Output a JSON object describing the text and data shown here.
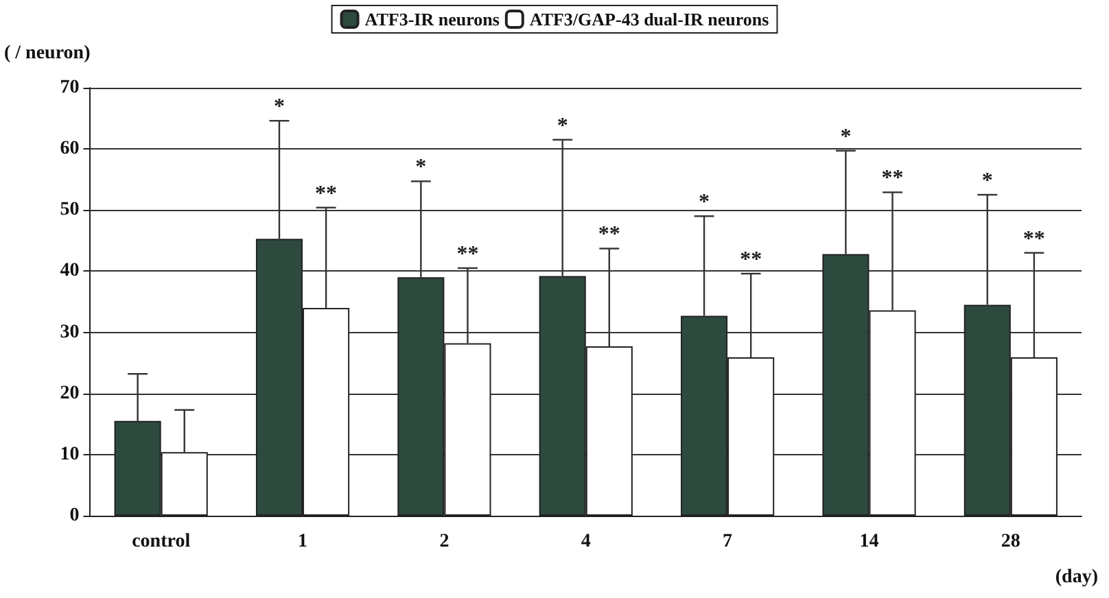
{
  "chart_data": {
    "type": "bar",
    "ylabel": "( / neuron)",
    "xlabel": "(day)",
    "categories": [
      "control",
      "1",
      "2",
      "4",
      "7",
      "14",
      "28"
    ],
    "series": [
      {
        "name": "ATF3-IR neurons",
        "color": "#2e4a3f",
        "values": [
          15.5,
          45.3,
          39,
          39.2,
          32.7,
          42.8,
          34.5
        ],
        "errors": [
          [
            15.5,
            23.2
          ],
          [
            45.3,
            64.6
          ],
          [
            39,
            54.7
          ],
          [
            39.2,
            61.5
          ],
          [
            32.7,
            49
          ],
          [
            42.8,
            59.7
          ],
          [
            34.5,
            52.5
          ]
        ]
      },
      {
        "name": "ATF3/GAP-43 dual-IR neurons",
        "color": "#ffffff",
        "values": [
          10.4,
          34,
          28.2,
          27.7,
          25.9,
          33.6,
          25.9
        ],
        "errors": [
          [
            10.4,
            17.3
          ],
          [
            34,
            50.4
          ],
          [
            28.2,
            40.5
          ],
          [
            27.7,
            43.7
          ],
          [
            25.9,
            39.6
          ],
          [
            33.6,
            52.9
          ],
          [
            25.9,
            43
          ]
        ]
      }
    ],
    "annotations": [
      "*",
      "**",
      "*",
      "**",
      "*",
      "**",
      "*",
      "**",
      "*",
      "**",
      "*",
      "**"
    ],
    "ylim": [
      0,
      70
    ],
    "yticks": [
      0,
      10,
      20,
      30,
      40,
      50,
      60,
      70
    ],
    "grid": "y",
    "legend": "top"
  }
}
